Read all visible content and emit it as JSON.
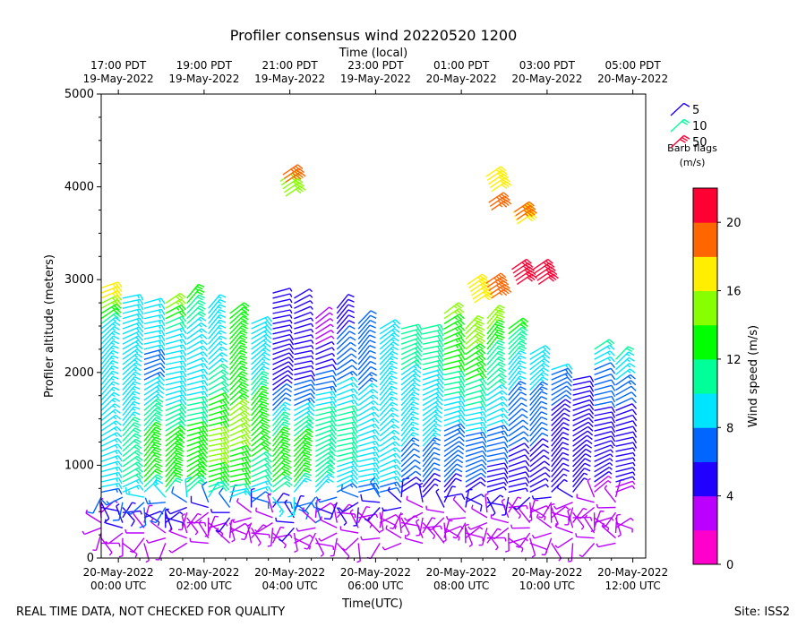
{
  "chart_data": {
    "type": "wind-barb-profile",
    "title": "Profiler consensus wind 20220520 1200",
    "top_axis_title": "Time (local)",
    "xlabel": "Time(UTC)",
    "ylabel": "Profiler altitude (meters)",
    "colorbar_label": "Wind speed (m/s)",
    "footer_left": "REAL TIME DATA, NOT CHECKED FOR QUALITY",
    "footer_right": "Site: ISS2",
    "xlim_hours_utc": [
      -0.4,
      12.3
    ],
    "ylim": [
      0,
      5000
    ],
    "y_ticks": [
      0,
      1000,
      2000,
      3000,
      4000,
      5000
    ],
    "bottom_ticks": [
      {
        "hour": 0,
        "line1": "20-May-2022",
        "line2": "00:00 UTC"
      },
      {
        "hour": 2,
        "line1": "20-May-2022",
        "line2": "02:00 UTC"
      },
      {
        "hour": 4,
        "line1": "20-May-2022",
        "line2": "04:00 UTC"
      },
      {
        "hour": 6,
        "line1": "20-May-2022",
        "line2": "06:00 UTC"
      },
      {
        "hour": 8,
        "line1": "20-May-2022",
        "line2": "08:00 UTC"
      },
      {
        "hour": 10,
        "line1": "20-May-2022",
        "line2": "10:00 UTC"
      },
      {
        "hour": 12,
        "line1": "20-May-2022",
        "line2": "12:00 UTC"
      }
    ],
    "top_ticks": [
      {
        "hour": 0,
        "line1": "17:00 PDT",
        "line2": "19-May-2022"
      },
      {
        "hour": 2,
        "line1": "19:00 PDT",
        "line2": "19-May-2022"
      },
      {
        "hour": 4,
        "line1": "21:00 PDT",
        "line2": "19-May-2022"
      },
      {
        "hour": 6,
        "line1": "23:00 PDT",
        "line2": "19-May-2022"
      },
      {
        "hour": 8,
        "line1": "01:00 PDT",
        "line2": "20-May-2022"
      },
      {
        "hour": 10,
        "line1": "03:00 PDT",
        "line2": "20-May-2022"
      },
      {
        "hour": 12,
        "line1": "05:00 PDT",
        "line2": "20-May-2022"
      }
    ],
    "barb_legend": {
      "items": [
        {
          "label": "5",
          "speed": 5
        },
        {
          "label": "10",
          "speed": 10
        },
        {
          "label": "50",
          "speed": 21
        }
      ],
      "title_line1": "Barb flags",
      "title_line2": "(m/s)"
    },
    "colorbar": {
      "ticks": [
        "0",
        "4",
        "8",
        "12",
        "16",
        "20"
      ],
      "tick_values": [
        0,
        4,
        8,
        12,
        16,
        20
      ],
      "range": [
        0,
        22
      ],
      "bins": [
        {
          "from": 0,
          "to": 2,
          "color": "#ff00cc"
        },
        {
          "from": 2,
          "to": 4,
          "color": "#bb00ff"
        },
        {
          "from": 4,
          "to": 6,
          "color": "#2200ff"
        },
        {
          "from": 6,
          "to": 8,
          "color": "#0066ff"
        },
        {
          "from": 8,
          "to": 10,
          "color": "#00e5ff"
        },
        {
          "from": 10,
          "to": 12,
          "color": "#00ff99"
        },
        {
          "from": 12,
          "to": 14,
          "color": "#00ff00"
        },
        {
          "from": 14,
          "to": 16,
          "color": "#88ff00"
        },
        {
          "from": 16,
          "to": 18,
          "color": "#ffee00"
        },
        {
          "from": 18,
          "to": 20,
          "color": "#ff6600"
        },
        {
          "from": 20,
          "to": 22,
          "color": "#ff0033"
        }
      ]
    },
    "profiles": {
      "times_start": -0.4,
      "interval_hours": 0.5,
      "count": 25,
      "base_altitude_m": 160,
      "spacing_low_m": 55,
      "split_altitude_m": 700,
      "spacing_high_m": 55,
      "tops_m": [
        2950,
        2800,
        2780,
        2770,
        2850,
        2700,
        2650,
        2550,
        2900,
        2800,
        2600,
        2700,
        2550,
        2500,
        2500,
        2500,
        2650,
        2500,
        2600,
        2500,
        2200,
        2050,
        1950,
        2250,
        2150
      ],
      "speed_profile_altitudes_m": [
        150,
        500,
        800,
        1200,
        1600,
        2000,
        2400,
        2800,
        4000
      ],
      "speed_profile_mps": [
        [
          3,
          4,
          9,
          10,
          9,
          8,
          8,
          17,
          17
        ],
        [
          3,
          5,
          10,
          11,
          9,
          8,
          8,
          8,
          8
        ],
        [
          2,
          5,
          12,
          13,
          10,
          7,
          9,
          9,
          9
        ],
        [
          3,
          5,
          13,
          13,
          10,
          8,
          9,
          16,
          16
        ],
        [
          2,
          4,
          13,
          14,
          11,
          8,
          9,
          13,
          13
        ],
        [
          2,
          4,
          13,
          15,
          13,
          10,
          8,
          8,
          8
        ],
        [
          2,
          5,
          12,
          14,
          14,
          12,
          12,
          12,
          12
        ],
        [
          2,
          4,
          10,
          13,
          13,
          9,
          8,
          8,
          8
        ],
        [
          3,
          4,
          13,
          14,
          7,
          5,
          5,
          4,
          4
        ],
        [
          3,
          5,
          12,
          13,
          8,
          5,
          4,
          4,
          4
        ],
        [
          2,
          4,
          10,
          11,
          10,
          6,
          3,
          3,
          3
        ],
        [
          3,
          4,
          9,
          11,
          10,
          7,
          6,
          5,
          5
        ],
        [
          2,
          4,
          8,
          10,
          9,
          7,
          6,
          6,
          6
        ],
        [
          2,
          4,
          8,
          9,
          9,
          8,
          8,
          8,
          8
        ],
        [
          2,
          4,
          6,
          8,
          9,
          10,
          10,
          10,
          10
        ],
        [
          2,
          3,
          6,
          8,
          9,
          10,
          10,
          10,
          10
        ],
        [
          3,
          4,
          6,
          7,
          9,
          12,
          13,
          16,
          16
        ],
        [
          2,
          4,
          6,
          7,
          10,
          13,
          15,
          17,
          17
        ],
        [
          2,
          4,
          5,
          7,
          9,
          11,
          13,
          19,
          19
        ],
        [
          2,
          3,
          5,
          6,
          7,
          9,
          12,
          14,
          14
        ],
        [
          2,
          3,
          5,
          6,
          7,
          9,
          11,
          13,
          13
        ],
        [
          2,
          3,
          5,
          5,
          6,
          8,
          12,
          12,
          12
        ],
        [
          2,
          3,
          5,
          5,
          5,
          6,
          11,
          11,
          11
        ],
        [
          2,
          3,
          4,
          5,
          6,
          7,
          13,
          13,
          13
        ],
        [
          2,
          3,
          4,
          5,
          6,
          9,
          12,
          12,
          12
        ]
      ]
    },
    "upper_clusters": [
      {
        "hour": 3.9,
        "altitude_m": 3900,
        "count": 5,
        "speed": 15
      },
      {
        "hour": 3.9,
        "altitude_m": 4050,
        "count": 3,
        "speed": 18
      },
      {
        "hour": 8.3,
        "altitude_m": 2750,
        "count": 6,
        "speed": 17
      },
      {
        "hour": 8.7,
        "altitude_m": 2800,
        "count": 5,
        "speed": 19
      },
      {
        "hour": 8.7,
        "altitude_m": 3950,
        "count": 5,
        "speed": 17
      },
      {
        "hour": 8.7,
        "altitude_m": 3750,
        "count": 3,
        "speed": 19
      },
      {
        "hour": 9.3,
        "altitude_m": 3600,
        "count": 4,
        "speed": 17
      },
      {
        "hour": 9.3,
        "altitude_m": 3650,
        "count": 3,
        "speed": 19
      },
      {
        "hour": 9.3,
        "altitude_m": 2950,
        "count": 5,
        "speed": 21
      },
      {
        "hour": 9.8,
        "altitude_m": 2950,
        "count": 5,
        "speed": 21
      }
    ]
  }
}
